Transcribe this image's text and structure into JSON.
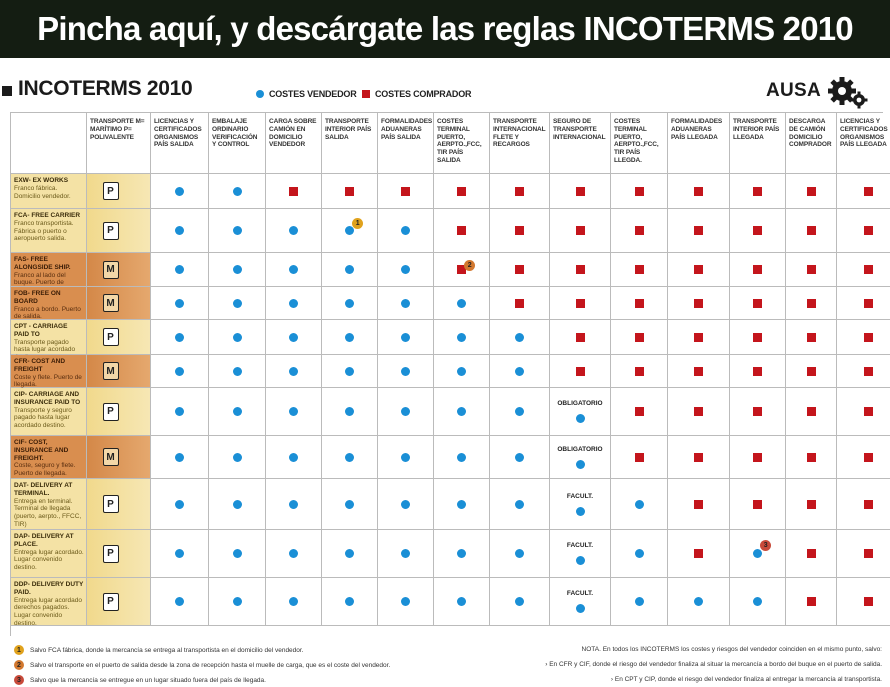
{
  "banner": "Pincha aquí, y descárgate las reglas INCOTERMS 2010",
  "title": "INCOTERMS 2010",
  "legend": {
    "seller": "COSTES VENDEDOR",
    "buyer": "COSTES COMPRADOR",
    "seller_color": "#1a8fd6",
    "buyer_color": "#c4151c"
  },
  "brand": "AUSA",
  "brand_icon": "gear-icon",
  "columns": [
    "TRANSPORTE M= MARÍTIMO P= POLIVALENTE",
    "LICENCIAS Y CERTIFICADOS ORGANISMOS PAÍS SALIDA",
    "EMBALAJE ORDINARIO VERIFICACIÓN Y CONTROL",
    "CARGA SOBRE CAMIÓN EN DOMICILIO VENDEDOR",
    "TRANSPORTE INTERIOR PAÍS SALIDA",
    "FORMALIDADES ADUANERAS PAÍS SALIDA",
    "COSTES TERMINAL PUERTO, AERPTO.,FCC, TIR PAÍS SALIDA",
    "TRANSPORTE INTERNACIONAL FLETE Y RECARGOS",
    "SEGURO DE TRANSPORTE INTERNACIONAL",
    "COSTES TERMINAL PUERTO, AERPTO.,FCC, TIR PAÍS LLEGDA.",
    "FORMALIDADES ADUANERAS PAÍS LLEGADA",
    "TRANSPORTE INTERIOR PAÍS LLEGADA",
    "DESCARGA DE CAMIÓN DOMICILIO COMPRADOR",
    "LICENCIAS Y CERTIFICADOS ORGANISMOS PAÍS LLEGADA"
  ],
  "rows": [
    {
      "code": "EXW- EX WORKS",
      "desc": "Franco fábrica. Domicilio vendedor.",
      "mode": "P",
      "cells": [
        "S",
        "S",
        "B",
        "B",
        "B",
        "B",
        "B",
        "B",
        "B",
        "B",
        "B",
        "B",
        "B"
      ]
    },
    {
      "code": "FCA- FREE CARRIER",
      "desc": "Franco transportista. Fábrica o puerto o aeropuerto salida.",
      "mode": "P",
      "cells": [
        "S",
        "S",
        "S",
        "S",
        "S",
        "B",
        "B",
        "B",
        "B",
        "B",
        "B",
        "B",
        "B"
      ],
      "note": {
        "col": 3,
        "num": "1"
      }
    },
    {
      "code": "FAS- FREE ALONGSIDE SHIP.",
      "desc": "Franco al lado del buque. Puerto de salida.",
      "mode": "M",
      "cells": [
        "S",
        "S",
        "S",
        "S",
        "S",
        "B",
        "B",
        "B",
        "B",
        "B",
        "B",
        "B",
        "B"
      ],
      "note": {
        "col": 5,
        "num": "2"
      }
    },
    {
      "code": "FOB- FREE ON BOARD",
      "desc": "Franco a bordo. Puerto de salida.",
      "mode": "M",
      "cells": [
        "S",
        "S",
        "S",
        "S",
        "S",
        "S",
        "B",
        "B",
        "B",
        "B",
        "B",
        "B",
        "B"
      ]
    },
    {
      "code": "CPT - CARRIAGE PAID TO",
      "desc": "Transporte pagado hasta lugar acordado destino.",
      "mode": "P",
      "cells": [
        "S",
        "S",
        "S",
        "S",
        "S",
        "S",
        "S",
        "B",
        "B",
        "B",
        "B",
        "B",
        "B"
      ]
    },
    {
      "code": "CFR- COST AND FREIGHT",
      "desc": "Coste y flete. Puerto de llegada.",
      "mode": "M",
      "cells": [
        "S",
        "S",
        "S",
        "S",
        "S",
        "S",
        "S",
        "B",
        "B",
        "B",
        "B",
        "B",
        "B"
      ]
    },
    {
      "code": "CIP- CARRIAGE AND INSURANCE PAID TO",
      "desc": "Transporte y seguro pagado hasta lugar acordado destino.",
      "mode": "P",
      "cells": [
        "S",
        "S",
        "S",
        "S",
        "S",
        "S",
        "S",
        "S",
        "B",
        "B",
        "B",
        "B",
        "B"
      ],
      "tag": "OBLIGATORIO"
    },
    {
      "code": "CIF- COST, INSURANCE AND FREIGHT.",
      "desc": "Coste, seguro y flete. Puerto de llegada.",
      "mode": "M",
      "cells": [
        "S",
        "S",
        "S",
        "S",
        "S",
        "S",
        "S",
        "S",
        "B",
        "B",
        "B",
        "B",
        "B"
      ],
      "tag": "OBLIGATORIO"
    },
    {
      "code": "DAT- DELIVERY AT TERMINAL.",
      "desc": "Entrega en terminal. Terminal de llegada (puerto, aerpto., FFCC, TIR)",
      "mode": "P",
      "cells": [
        "S",
        "S",
        "S",
        "S",
        "S",
        "S",
        "S",
        "S",
        "S",
        "B",
        "B",
        "B",
        "B"
      ],
      "tag": "FACULT."
    },
    {
      "code": "DAP- DELIVERY AT PLACE.",
      "desc": "Entrega lugar acordado. Lugar convenido destino.",
      "mode": "P",
      "cells": [
        "S",
        "S",
        "S",
        "S",
        "S",
        "S",
        "S",
        "S",
        "S",
        "B",
        "S",
        "B",
        "B"
      ],
      "tag": "FACULT.",
      "note": {
        "col": 10,
        "num": "3"
      }
    },
    {
      "code": "DDP- DELIVERY DUTY PAID.",
      "desc": "Entrega lugar acordado derechos pagados. Lugar convenido destino.",
      "mode": "P",
      "cells": [
        "S",
        "S",
        "S",
        "S",
        "S",
        "S",
        "S",
        "S",
        "S",
        "S",
        "S",
        "B",
        "B"
      ],
      "tag": "FACULT."
    }
  ],
  "footnotes": [
    {
      "num": "1",
      "text": "Salvo FCA fábrica, donde la mercancía se entrega al transportista en el domicilio del vendedor."
    },
    {
      "num": "2",
      "text": "Salvo el transporte en el puerto de salida desde la zona de recepción hasta el muelle de carga, que es el coste del vendedor."
    },
    {
      "num": "3",
      "text": "Salvo que la mercancía se entregue en un lugar situado fuera del país de llegada."
    }
  ],
  "notes": [
    "NOTA. En todos los INCOTERMS los costes y riesgos del vendedor coinciden en el mismo punto, salvo:",
    "› En CFR y CIF, donde el riesgo del vendedor finaliza al situar la mercancía a bordo del buque en el puerto de salida.",
    "› En CPT y CIP, donde el riesgo del vendedor finaliza al entregar la mercancía al transportista."
  ]
}
